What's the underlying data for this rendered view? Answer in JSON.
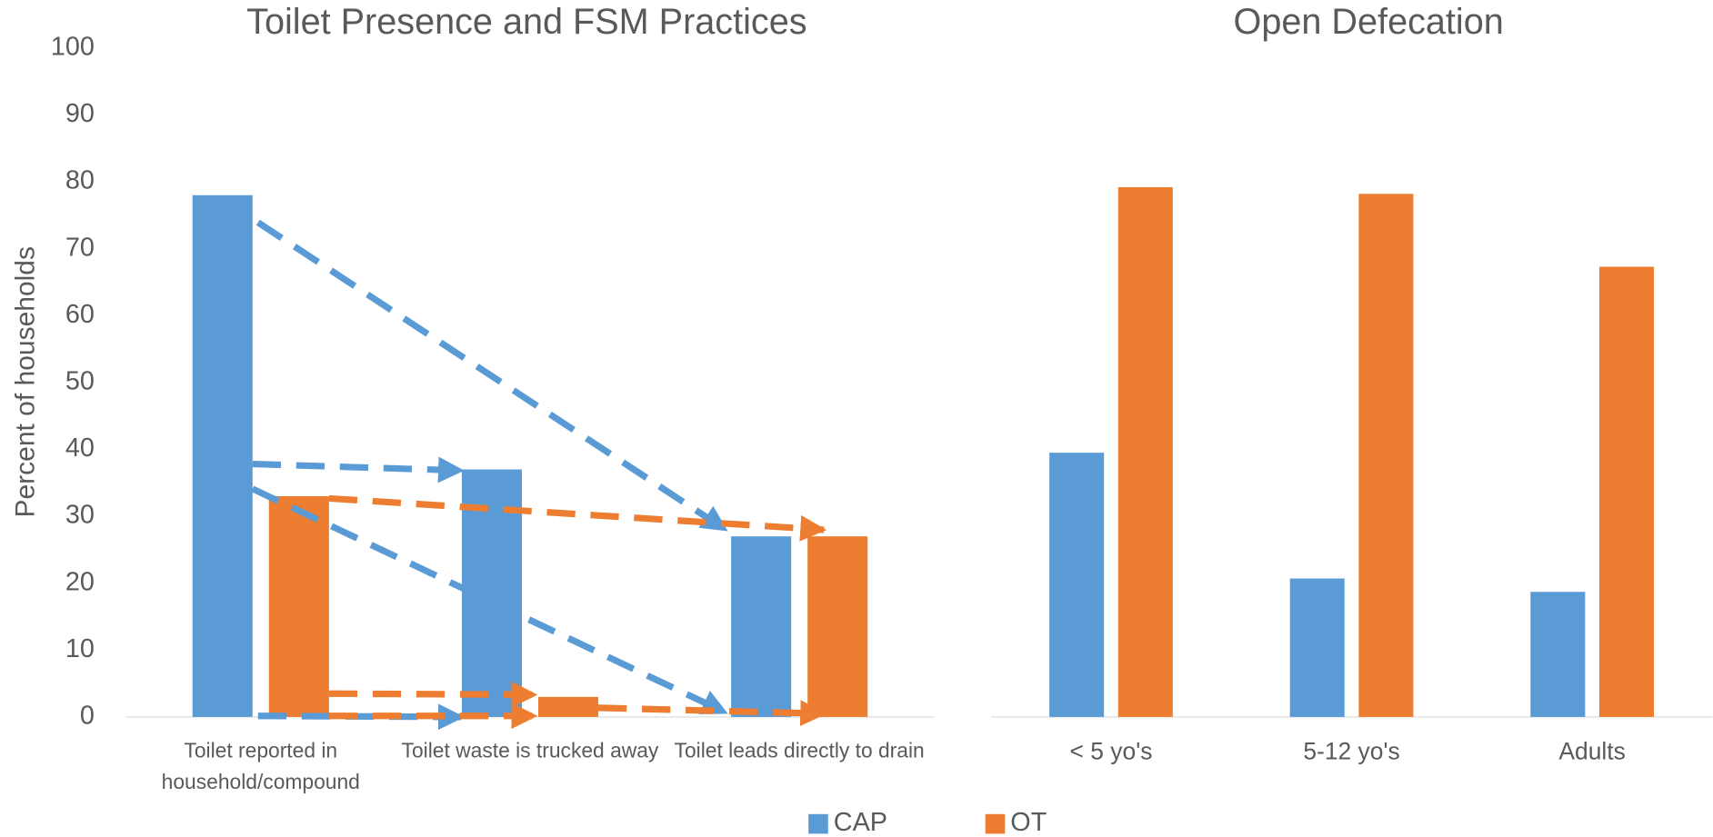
{
  "chart_data": [
    {
      "type": "bar",
      "title": "Toilet Presence and FSM Practices",
      "y_label": "Percent of households",
      "categories": [
        "Toilet reported in household/compound",
        "Toilet waste is trucked away",
        "Toilet leads directly to drain"
      ],
      "series": [
        {
          "name": "CAP",
          "color": "#5b9bd5",
          "values": [
            78,
            37,
            27
          ]
        },
        {
          "name": "OT",
          "color": "#ed7d31",
          "values": [
            33,
            3,
            27
          ]
        }
      ],
      "ylim": [
        0,
        100
      ],
      "yticks": [
        0,
        10,
        20,
        30,
        40,
        50,
        60,
        70,
        80,
        90,
        100
      ]
    },
    {
      "type": "bar",
      "title": "Open Defecation",
      "categories": [
        "< 5 yo's",
        "5-12 yo's",
        "Adults"
      ],
      "series": [
        {
          "name": "CAP",
          "color": "#5b9bd5",
          "values": [
            39.5,
            20.7,
            18.7
          ]
        },
        {
          "name": "OT",
          "color": "#ed7d31",
          "values": [
            79.2,
            78.2,
            67.3
          ]
        }
      ],
      "ylim": [
        0,
        100
      ]
    }
  ]
}
